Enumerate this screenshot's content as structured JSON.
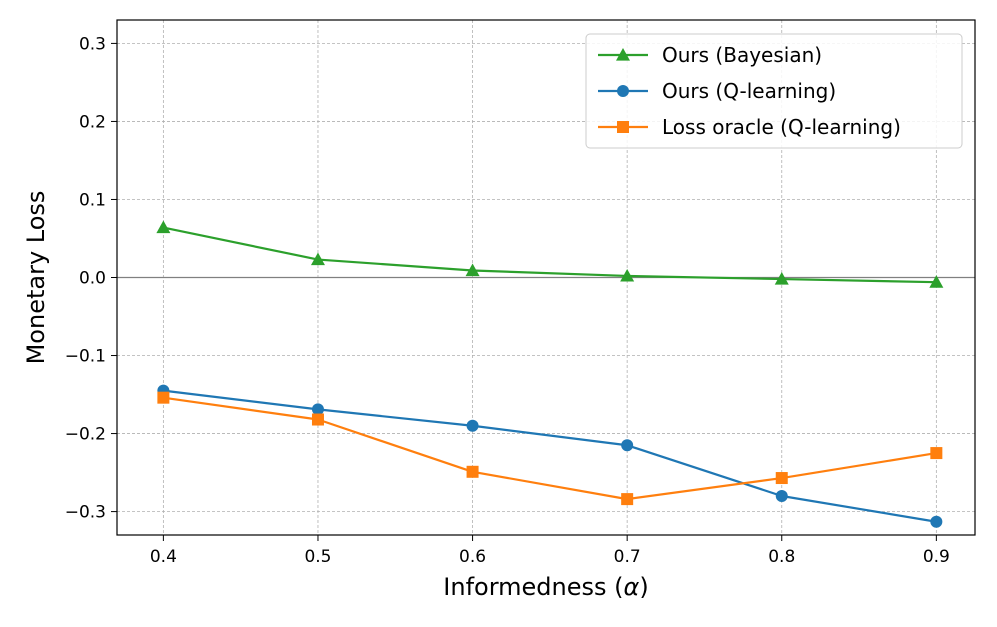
{
  "chart_data": {
    "type": "line",
    "title": "",
    "xlabel": "Informedness (",
    "xlabel_symbol": "α",
    "xlabel_suffix": ")",
    "ylabel": "Monetary Loss",
    "x": [
      0.4,
      0.5,
      0.6,
      0.7,
      0.8,
      0.9
    ],
    "xlim": [
      0.37,
      0.925
    ],
    "ylim": [
      -0.33,
      0.33
    ],
    "xticks": [
      0.4,
      0.5,
      0.6,
      0.7,
      0.8,
      0.9
    ],
    "xtick_labels": [
      "0.4",
      "0.5",
      "0.6",
      "0.7",
      "0.8",
      "0.9"
    ],
    "yticks": [
      0.3,
      0.2,
      0.1,
      0.0,
      -0.1,
      -0.2,
      -0.3
    ],
    "ytick_labels": [
      "0.3",
      "0.2",
      "0.1",
      "0.0",
      "−0.1",
      "−0.2",
      "−0.3"
    ],
    "grid": true,
    "reference_line_y": 0.0,
    "legend_position": "top-right",
    "series": [
      {
        "name": "Ours (Bayesian)",
        "color": "#2ca02c",
        "marker": "triangle",
        "values": [
          0.064,
          0.023,
          0.009,
          0.002,
          -0.002,
          -0.006
        ]
      },
      {
        "name": "Ours (Q-learning)",
        "color": "#1f77b4",
        "marker": "circle",
        "values": [
          -0.145,
          -0.169,
          -0.19,
          -0.215,
          -0.28,
          -0.313
        ]
      },
      {
        "name": "Loss oracle (Q-learning)",
        "color": "#ff7f0e",
        "marker": "square",
        "values": [
          -0.154,
          -0.182,
          -0.249,
          -0.284,
          -0.257,
          -0.225
        ]
      }
    ]
  }
}
